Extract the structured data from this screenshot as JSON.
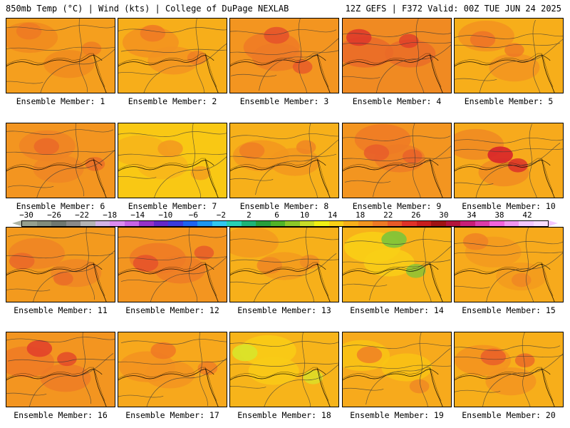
{
  "header": {
    "left": "850mb Temp (°C) | Wind (kts) | College of DuPage NEXLAB",
    "right": "12Z GEFS | F372 Valid: 00Z TUE JUN 24 2025"
  },
  "members": [
    {
      "label": "Ensemble Member: 1",
      "base": "#f59f1e",
      "warm": "#f08a1e",
      "hot": "#ee7a22"
    },
    {
      "label": "Ensemble Member: 2",
      "base": "#f7ae1a",
      "warm": "#f39220",
      "hot": "#ef7b24"
    },
    {
      "label": "Ensemble Member: 3",
      "base": "#f39520",
      "warm": "#ee7a26",
      "hot": "#e5542a"
    },
    {
      "label": "Ensemble Member: 4",
      "base": "#f08a22",
      "warm": "#ea6a28",
      "hot": "#df3a2a"
    },
    {
      "label": "Ensemble Member: 5",
      "base": "#f7ae1a",
      "warm": "#f39220",
      "hot": "#ee7426"
    },
    {
      "label": "Ensemble Member: 6",
      "base": "#f39520",
      "warm": "#ef8424",
      "hot": "#ea6a28"
    },
    {
      "label": "Ensemble Member: 7",
      "base": "#f9c814",
      "warm": "#f7b41a",
      "hot": "#f39a1e"
    },
    {
      "label": "Ensemble Member: 8",
      "base": "#f7b01a",
      "warm": "#f3961e",
      "hot": "#ef8024"
    },
    {
      "label": "Ensemble Member: 9",
      "base": "#f39520",
      "warm": "#ee7a26",
      "hot": "#e85e2a"
    },
    {
      "label": "Ensemble Member: 10",
      "base": "#f7aa1c",
      "warm": "#f08a22",
      "hot": "#d8242a"
    },
    {
      "label": "Ensemble Member: 11",
      "base": "#f39a1e",
      "warm": "#ef8424",
      "hot": "#ea6a28"
    },
    {
      "label": "Ensemble Member: 12",
      "base": "#f39520",
      "warm": "#ee7a26",
      "hot": "#e5542a"
    },
    {
      "label": "Ensemble Member: 13",
      "base": "#f7b01a",
      "warm": "#f39a1e",
      "hot": "#ef8824"
    },
    {
      "label": "Ensemble Member: 14",
      "base": "#f7b21a",
      "warm": "#f9d016",
      "hot": "#7cc43a"
    },
    {
      "label": "Ensemble Member: 15",
      "base": "#f7aa1c",
      "warm": "#f39a1e",
      "hot": "#ef8424"
    },
    {
      "label": "Ensemble Member: 16",
      "base": "#f39520",
      "warm": "#ee7a26",
      "hot": "#e2422a"
    },
    {
      "label": "Ensemble Member: 17",
      "base": "#f7a81c",
      "warm": "#f39220",
      "hot": "#ef7a24"
    },
    {
      "label": "Ensemble Member: 18",
      "base": "#f7b41a",
      "warm": "#f9cc16",
      "hot": "#d8e42a"
    },
    {
      "label": "Ensemble Member: 19",
      "base": "#f7aa1c",
      "warm": "#f9c414",
      "hot": "#ef8424"
    },
    {
      "label": "Ensemble Member: 20",
      "base": "#f7ae1a",
      "warm": "#f39220",
      "hot": "#ea6228"
    }
  ],
  "colorbar": {
    "labels": [
      "−30",
      "−26",
      "−22",
      "−18",
      "−14",
      "−10",
      "−6",
      "−2",
      "2",
      "6",
      "10",
      "14",
      "18",
      "22",
      "26",
      "30",
      "34",
      "38",
      "42"
    ],
    "colors": [
      "#96a08e",
      "#828c7c",
      "#707870",
      "#8a8a8a",
      "#b4b4b4",
      "#d2b4e6",
      "#dc8cf0",
      "#c864e6",
      "#9632c8",
      "#6428c8",
      "#3c3cdc",
      "#1e64f0",
      "#1e96f0",
      "#32c8f0",
      "#28d2b4",
      "#1eb478",
      "#28a03c",
      "#50b428",
      "#8cc828",
      "#c8dc28",
      "#f0f014",
      "#f9d016",
      "#f7b01a",
      "#f39520",
      "#ef7a24",
      "#e85a28",
      "#e03228",
      "#c81e1e",
      "#a01414",
      "#b4143c",
      "#c81e78",
      "#dc3caa",
      "#f064dc",
      "#f096f0",
      "#f3c7ff",
      "#f8dcff"
    ]
  }
}
